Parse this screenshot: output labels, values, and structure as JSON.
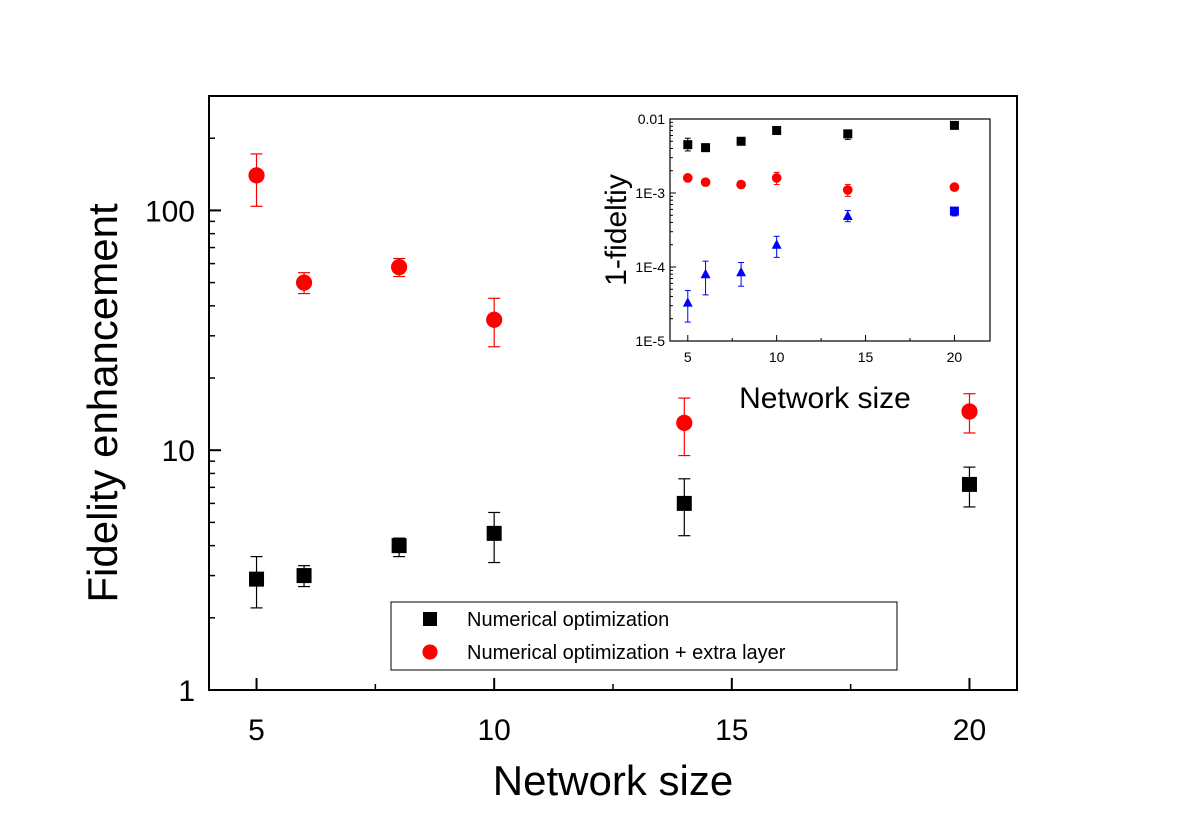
{
  "chart_data": [
    {
      "type": "scatter",
      "xlabel": "Network size",
      "ylabel": "Fidelity enhancement",
      "y_scale": "log",
      "xlim": [
        4,
        21
      ],
      "ylim": [
        1,
        300
      ],
      "x_ticks": [
        5,
        10,
        15,
        20
      ],
      "x_tick_labels": [
        "5",
        "10",
        "15",
        "20"
      ],
      "y_ticks": [
        1,
        10,
        100
      ],
      "y_tick_labels": [
        "1",
        "10",
        "100"
      ],
      "grid": false,
      "legend_position": "bottom-center",
      "series": [
        {
          "name": "Numerical optimization",
          "marker": "square",
          "color": "#000000",
          "x": [
            5,
            6,
            8,
            10,
            14,
            20
          ],
          "y": [
            2.9,
            3.0,
            4.0,
            4.5,
            6.0,
            7.2
          ],
          "err_low": [
            2.2,
            2.7,
            3.6,
            3.4,
            4.4,
            5.8
          ],
          "err_high": [
            3.6,
            3.3,
            4.3,
            5.5,
            7.6,
            8.5
          ]
        },
        {
          "name": "Numerical optimization + extra layer",
          "marker": "circle",
          "color": "#ff0000",
          "x": [
            5,
            6,
            8,
            10,
            14,
            20
          ],
          "y": [
            140,
            50,
            58,
            35,
            13,
            14.5
          ],
          "err_low": [
            104,
            45,
            53,
            27,
            9.5,
            11.8
          ],
          "err_high": [
            172,
            55,
            63,
            43,
            16.5,
            17.2
          ]
        }
      ]
    },
    {
      "type": "scatter",
      "xlabel": "Network size",
      "ylabel": "1-fideltiy",
      "y_scale": "log",
      "xlim": [
        4,
        22
      ],
      "ylim": [
        1e-05,
        0.01
      ],
      "x_ticks": [
        5,
        10,
        15,
        20
      ],
      "x_tick_labels": [
        "5",
        "10",
        "15",
        "20"
      ],
      "y_ticks": [
        1e-05,
        0.0001,
        0.001,
        0.01
      ],
      "y_tick_labels": [
        "1E-5",
        "1E-4",
        "1E-3",
        "0.01"
      ],
      "grid": false,
      "series": [
        {
          "marker": "square",
          "color": "#000000",
          "x": [
            5,
            6,
            8,
            10,
            14,
            20
          ],
          "y": [
            0.0045,
            0.0041,
            0.005,
            0.007,
            0.0063,
            0.0082
          ],
          "err_low": [
            0.0037,
            0.0039,
            0.0047,
            0.0066,
            0.0053,
            0.0078
          ],
          "err_high": [
            0.0055,
            0.0043,
            0.0053,
            0.0073,
            0.0068,
            0.0086
          ]
        },
        {
          "marker": "circle",
          "color": "#ff0000",
          "x": [
            5,
            6,
            8,
            10,
            14,
            20
          ],
          "y": [
            0.0016,
            0.0014,
            0.0013,
            0.0016,
            0.0011,
            0.0012
          ],
          "err_low": [
            0.0015,
            0.0013,
            0.0012,
            0.0013,
            0.0009,
            0.0011
          ],
          "err_high": [
            0.0017,
            0.0015,
            0.0014,
            0.0019,
            0.0013,
            0.0013
          ]
        },
        {
          "marker": "triangle",
          "color": "#0000ff",
          "x": [
            5,
            6,
            8,
            10,
            14,
            20
          ],
          "y": [
            3.3e-05,
            8e-05,
            8.5e-05,
            0.0002,
            0.00049,
            0.00057
          ],
          "err_low": [
            1.8e-05,
            4.2e-05,
            5.5e-05,
            0.000135,
            0.00041,
            0.00049
          ],
          "err_high": [
            4.8e-05,
            0.00012,
            0.000115,
            0.00026,
            0.00058,
            0.00063
          ]
        }
      ]
    }
  ]
}
